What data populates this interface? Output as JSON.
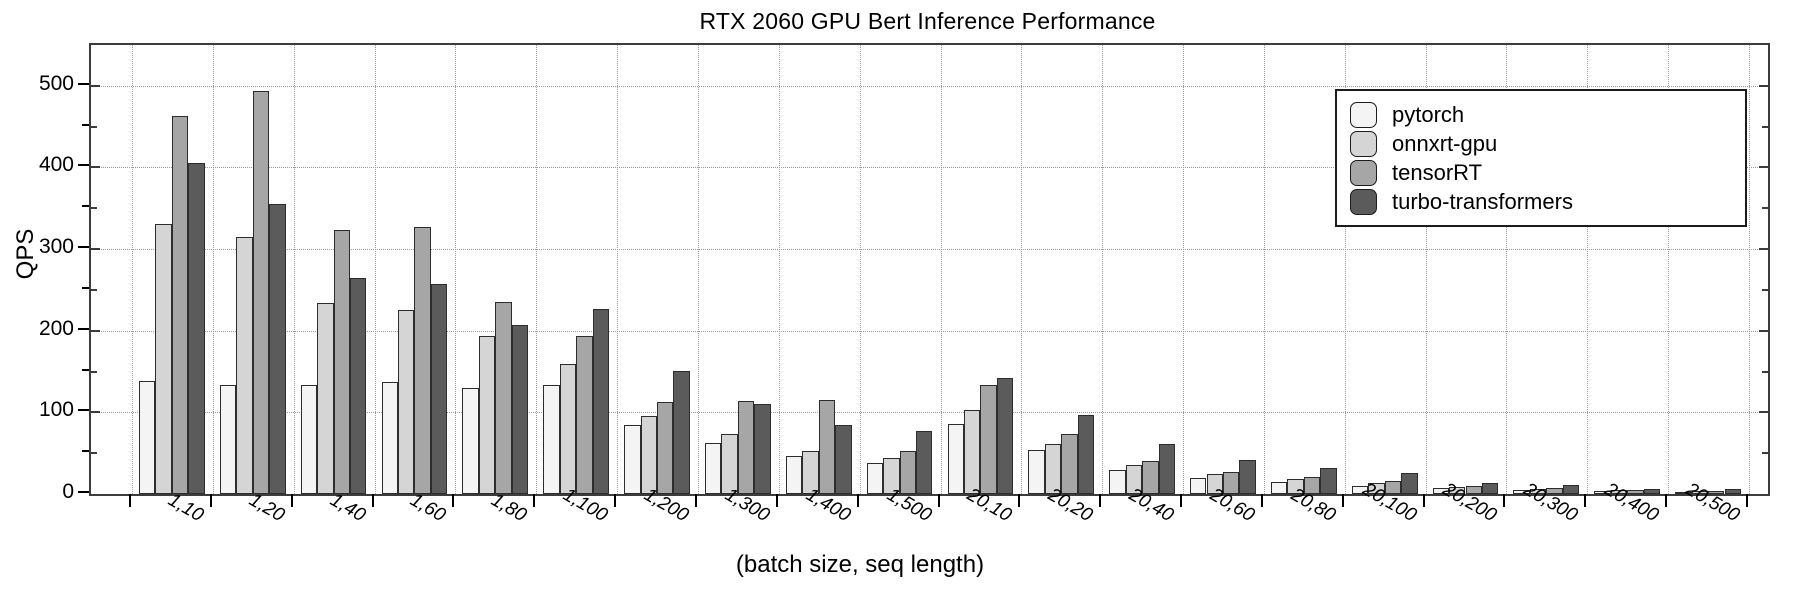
{
  "chart_data": {
    "type": "bar",
    "title": "RTX 2060 GPU Bert Inference Performance",
    "ylabel": "QPS",
    "xlabel": "(batch size, seq length)",
    "ylim": [
      0,
      550
    ],
    "yticks": [
      0,
      100,
      200,
      300,
      400,
      500
    ],
    "minor_tick_step": 50,
    "grid": true,
    "legend_position": "top-right",
    "categories": [
      "1,10",
      "1,20",
      "1,40",
      "1,60",
      "1,80",
      "1,100",
      "1,200",
      "1,300",
      "1,400",
      "1,500",
      "20,10",
      "20,20",
      "20,40",
      "20,60",
      "20,80",
      "20,100",
      "20,200",
      "20,300",
      "20,400",
      "20,500"
    ],
    "series": [
      {
        "name": "pytorch",
        "color": "#f4f4f4",
        "values": [
          138,
          133,
          133,
          137,
          130,
          133,
          85,
          63,
          47,
          38,
          86,
          54,
          29,
          20,
          15,
          10,
          7,
          5,
          3.5,
          2.5
        ]
      },
      {
        "name": "onnxrt-gpu",
        "color": "#d5d5d5",
        "values": [
          331,
          315,
          234,
          226,
          194,
          159,
          96,
          74,
          53,
          44,
          103,
          61,
          35,
          25,
          18,
          13,
          9,
          6.5,
          4.5,
          3.5
        ]
      },
      {
        "name": "tensorRT",
        "color": "#a6a6a6",
        "values": [
          463,
          494,
          324,
          327,
          235,
          194,
          113,
          114,
          115,
          53,
          134,
          73,
          40,
          27,
          21,
          16,
          10,
          7,
          4.5,
          4
        ]
      },
      {
        "name": "turbo-transformers",
        "color": "#5b5b5b",
        "values": [
          405,
          355,
          265,
          257,
          207,
          227,
          151,
          110,
          84,
          77,
          142,
          97,
          61,
          42,
          32,
          26,
          13.5,
          11,
          6.5,
          6
        ]
      }
    ]
  }
}
